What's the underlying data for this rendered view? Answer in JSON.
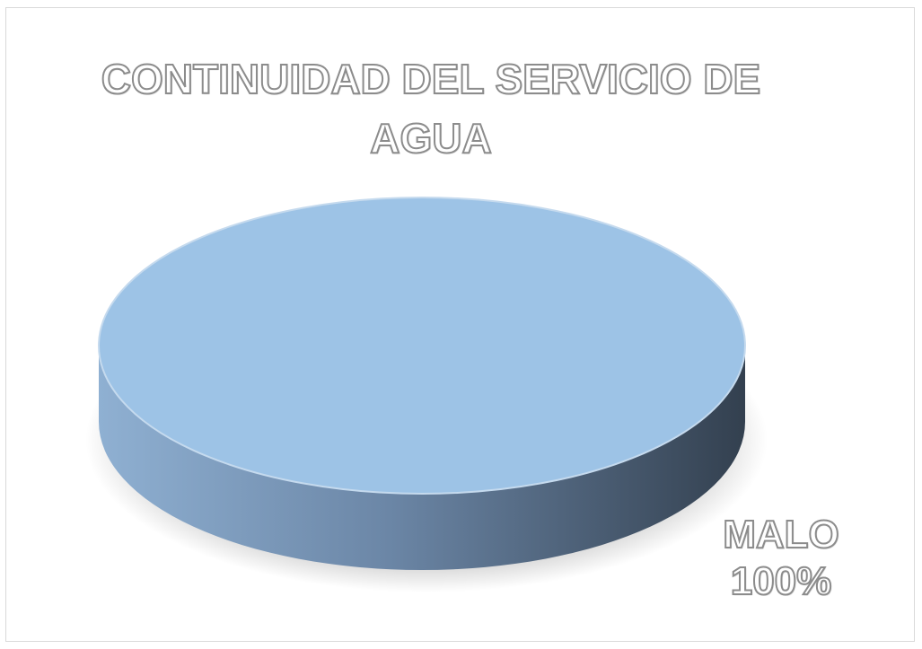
{
  "chart_data": {
    "type": "pie",
    "title": "CONTINUIDAD DEL SERVICIO DE AGUA",
    "categories": [
      "MALO"
    ],
    "values": [
      100
    ],
    "value_labels": [
      "100%"
    ],
    "color": "#9dc3e6"
  }
}
